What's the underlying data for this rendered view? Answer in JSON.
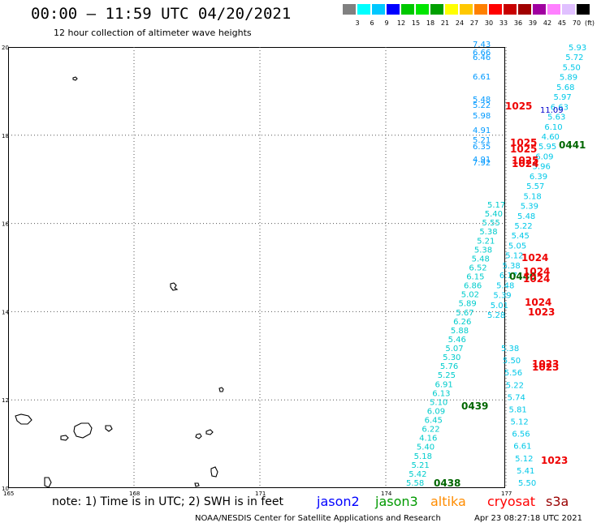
{
  "header": {
    "title": "00:00 – 11:59 UTC 04/20/2021",
    "subtitle": "12 hour collection of altimeter wave heights"
  },
  "legend": {
    "colors": [
      "#808080",
      "#00ffff",
      "#00c8ff",
      "#0000ff",
      "#00c800",
      "#00e600",
      "#00a000",
      "#ffff00",
      "#ffc800",
      "#ff8000",
      "#ff0000",
      "#c80000",
      "#a00000",
      "#a000a0",
      "#ff80ff",
      "#e0c0ff",
      "#000000"
    ],
    "ticks": [
      "3",
      "6",
      "9",
      "12",
      "15",
      "18",
      "21",
      "24",
      "27",
      "30",
      "33",
      "36",
      "39",
      "42",
      "45",
      "70"
    ],
    "unit": "(ft)"
  },
  "map": {
    "lat_labels": [
      "20",
      "18",
      "16",
      "14",
      "12",
      "10"
    ],
    "lon_labels": [
      "165",
      "168",
      "171",
      "174",
      "177"
    ],
    "tracks": [
      {
        "name": "cryosat",
        "color": "#0099ff",
        "values": [
          "7.43",
          "6.66",
          "6.46",
          "6.61",
          "5.48",
          "5.22",
          "5.98",
          "4.91",
          "5.21",
          "6.35",
          "4.91",
          "7.92"
        ]
      },
      {
        "name": "jason2",
        "color": "#00c8e8",
        "values": [
          "5.93",
          "5.72",
          "5.50",
          "5.89",
          "5.68",
          "5.97",
          "6.63",
          "5.63",
          "6.10",
          "4.60",
          "5.95",
          "6.09",
          "5.96",
          "6.39",
          "5.57",
          "5.18",
          "5.39",
          "5.48",
          "5.22",
          "5.45",
          "5.05",
          "5.12",
          "5.38",
          "6.17",
          "5.48",
          "5.39",
          "5.01",
          "5.28",
          "5.38",
          "5.50",
          "5.56",
          "5.22",
          "5.74",
          "5.81",
          "5.12",
          "6.56",
          "6.61",
          "5.12",
          "5.41",
          "5.50"
        ]
      },
      {
        "name": "jason3",
        "color": "#00cccc",
        "values": [
          "5.17",
          "5.40",
          "5.55",
          "5.38",
          "5.21",
          "5.38",
          "5.48",
          "6.52",
          "6.15",
          "6.86",
          "5.02",
          "5.89",
          "5.67",
          "6.26",
          "5.88",
          "5.46",
          "5.07",
          "5.30",
          "5.76",
          "5.25",
          "6.91",
          "6.13",
          "5.10",
          "6.09",
          "6.45",
          "6.22",
          "4.16",
          "5.40",
          "5.18",
          "5.21",
          "5.42",
          "5.58"
        ]
      },
      {
        "name": "s3a_ids",
        "color": "#006600",
        "values": [
          "0441",
          "0440",
          "0439",
          "0438"
        ]
      },
      {
        "name": "cryosat_ids",
        "color": "#ee0000",
        "values": [
          "1025",
          "1025",
          "1025",
          "1025",
          "1024",
          "1024",
          "1024",
          "1024",
          "1024",
          "1023",
          "1023",
          "1023",
          "1023"
        ]
      },
      {
        "name": "jason2_ids",
        "color": "#0000cc",
        "values": [
          "11.09"
        ]
      }
    ]
  },
  "footer": {
    "note": "note: 1) Time is in UTC; 2) SWH is in feet",
    "sats": [
      {
        "label": "jason2",
        "color": "#0000ff"
      },
      {
        "label": "jason3",
        "color": "#009900"
      },
      {
        "label": "altika",
        "color": "#ff8c00"
      },
      {
        "label": "cryosat",
        "color": "#ff0000"
      },
      {
        "label": "s3a",
        "color": "#990000"
      }
    ],
    "credit": "NOAA/NESDIS Center for Satellite Applications and Research",
    "timestamp": "Apr 23 08:27:18 UTC 2021"
  }
}
